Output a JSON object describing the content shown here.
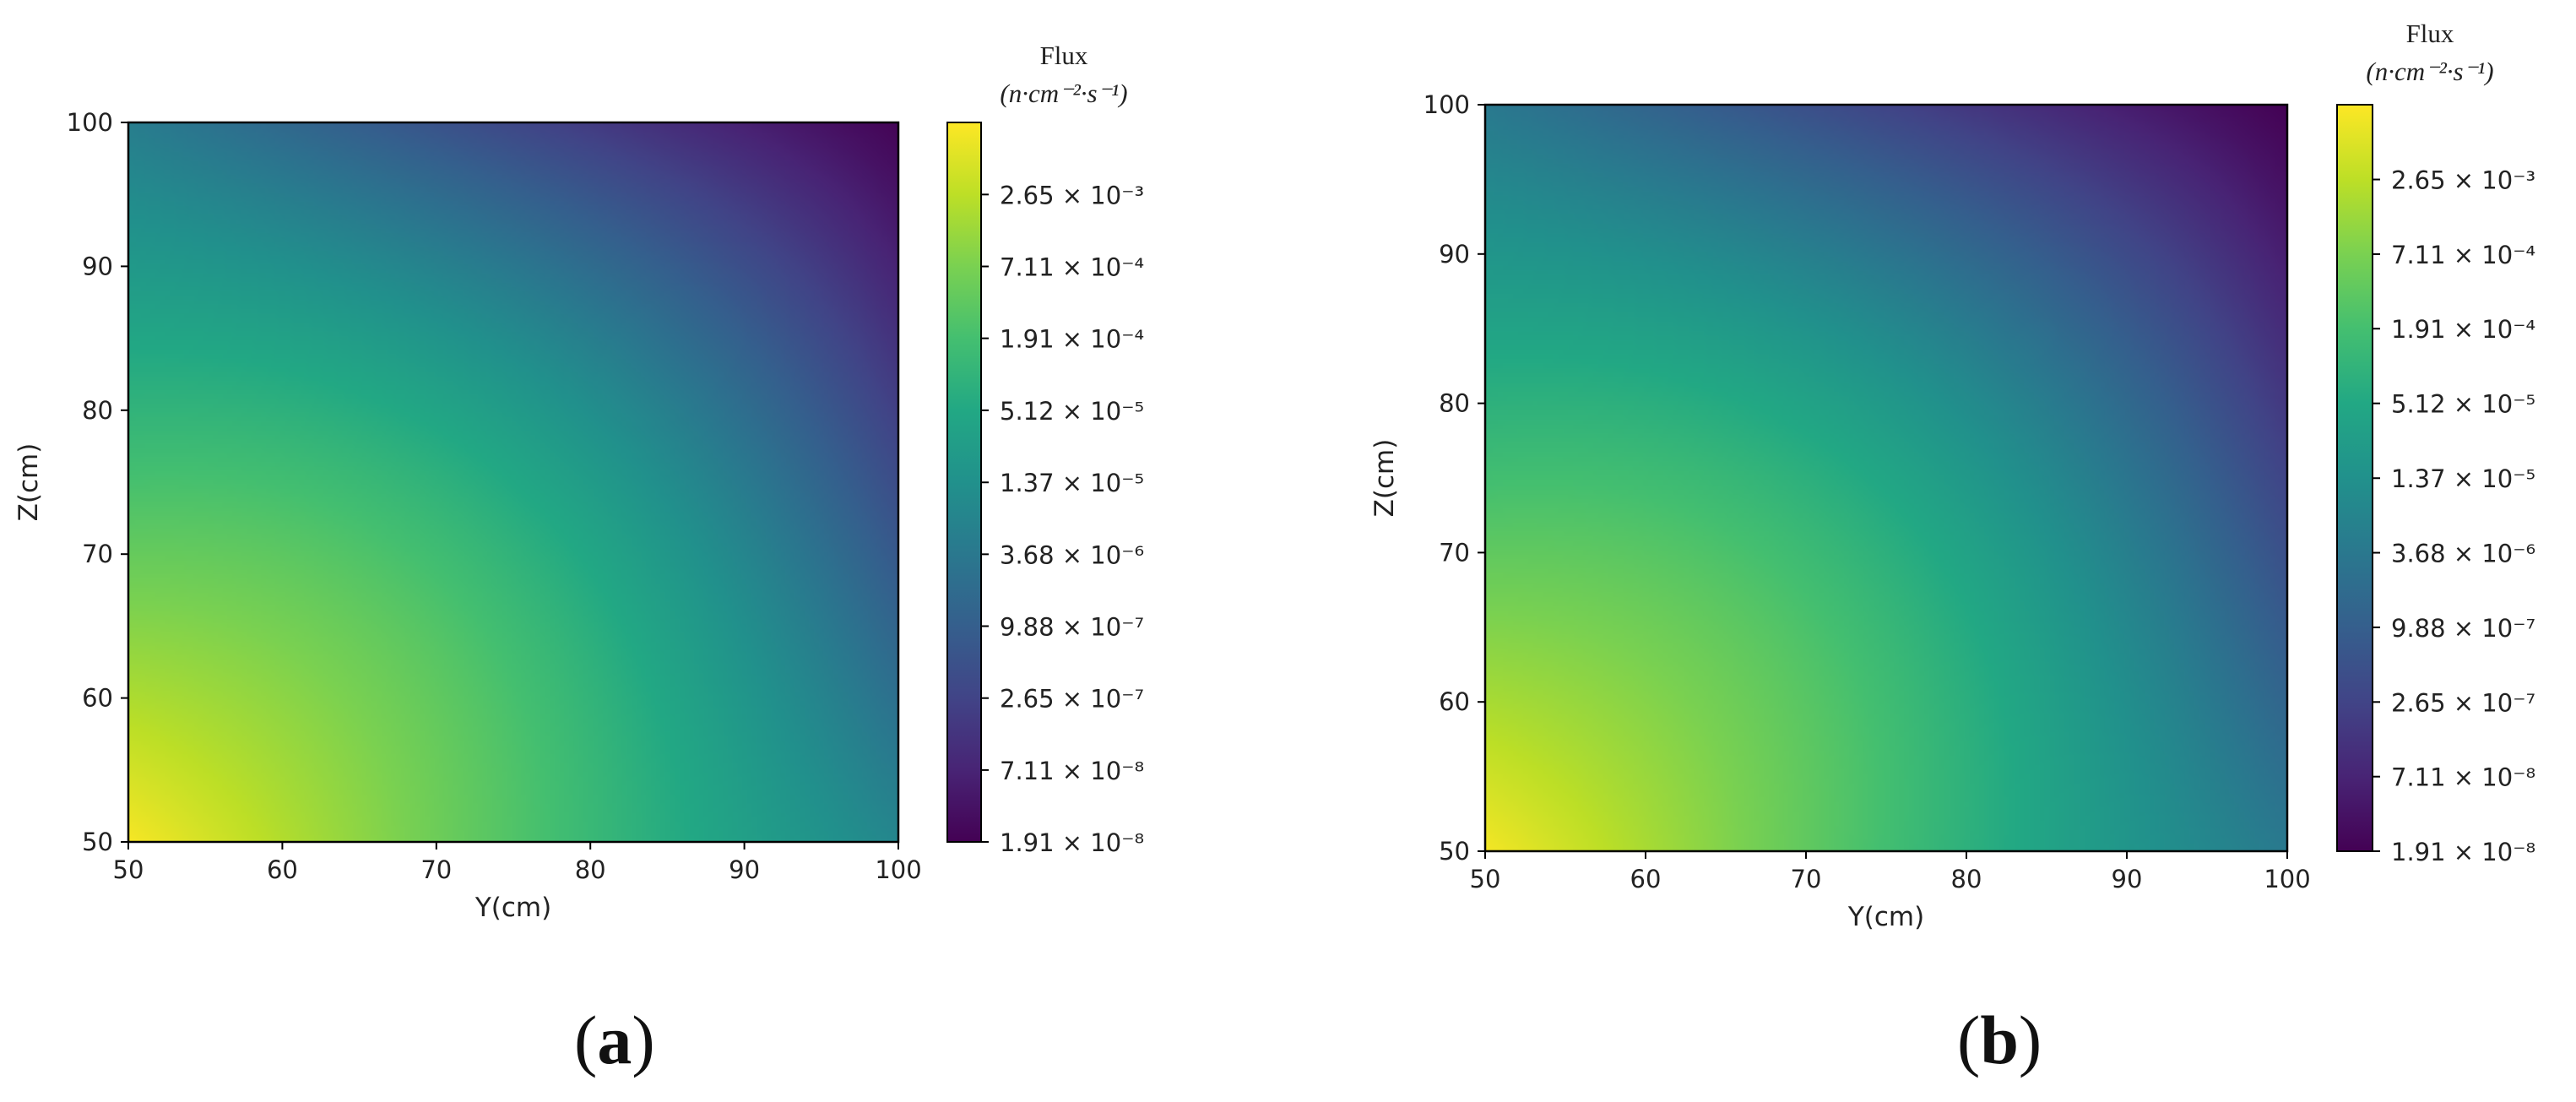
{
  "figure": {
    "panels": [
      {
        "label": "a"
      },
      {
        "label": "b"
      }
    ]
  },
  "chart_data": [
    {
      "type": "heatmap",
      "panel": "a",
      "xlabel": "Y(cm)",
      "ylabel": "Z(cm)",
      "xlim": [
        50,
        100
      ],
      "ylim": [
        50,
        100
      ],
      "xticks": [
        "50",
        "60",
        "70",
        "80",
        "90",
        "100"
      ],
      "yticks": [
        "50",
        "60",
        "70",
        "80",
        "90",
        "100"
      ],
      "colorbar": {
        "title": "Flux",
        "unit": "(n·cm⁻²·s⁻¹)",
        "scale": "log",
        "colormap": "viridis",
        "range": [
          1.91e-08,
          0.0099
        ],
        "ticks": [
          "1.91 × 10⁻⁸",
          "7.11 × 10⁻⁸",
          "2.65 × 10⁻⁷",
          "9.88 × 10⁻⁷",
          "3.68 × 10⁻⁶",
          "1.37 × 10⁻⁵",
          "5.12 × 10⁻⁵",
          "1.91 × 10⁻⁴",
          "7.11 × 10⁻⁴",
          "2.65 × 10⁻³"
        ],
        "tick_values": [
          1.91e-08,
          7.11e-08,
          2.65e-07,
          9.88e-07,
          3.68e-06,
          1.37e-05,
          5.12e-05,
          0.000191,
          0.000711,
          0.00265
        ]
      },
      "field": {
        "description_points": [
          {
            "y": 50,
            "z": 50,
            "flux": 0.0085
          },
          {
            "y": 75,
            "z": 75,
            "flux": 5.12e-05
          },
          {
            "y": 100,
            "z": 50,
            "flux": 8e-06
          },
          {
            "y": 50,
            "z": 100,
            "flux": 5e-06
          },
          {
            "y": 100,
            "z": 100,
            "flux": 2.2e-08
          }
        ]
      }
    },
    {
      "type": "heatmap",
      "panel": "b",
      "xlabel": "Y(cm)",
      "ylabel": "Z(cm)",
      "xlim": [
        50,
        100
      ],
      "ylim": [
        50,
        100
      ],
      "xticks": [
        "50",
        "60",
        "70",
        "80",
        "90",
        "100"
      ],
      "yticks": [
        "50",
        "60",
        "70",
        "80",
        "90",
        "100"
      ],
      "colorbar": {
        "title": "Flux",
        "unit": "(n·cm⁻²·s⁻¹)",
        "scale": "log",
        "colormap": "viridis",
        "range": [
          1.91e-08,
          0.0099
        ],
        "ticks": [
          "1.91 × 10⁻⁸",
          "7.11 × 10⁻⁸",
          "2.65 × 10⁻⁷",
          "9.88 × 10⁻⁷",
          "3.68 × 10⁻⁶",
          "1.37 × 10⁻⁵",
          "5.12 × 10⁻⁵",
          "1.91 × 10⁻⁴",
          "7.11 × 10⁻⁴",
          "2.65 × 10⁻³"
        ],
        "tick_values": [
          1.91e-08,
          7.11e-08,
          2.65e-07,
          9.88e-07,
          3.68e-06,
          1.37e-05,
          5.12e-05,
          0.000191,
          0.000711,
          0.00265
        ]
      },
      "field": {
        "description_points": [
          {
            "y": 50,
            "z": 50,
            "flux": 0.008
          },
          {
            "y": 75,
            "z": 75,
            "flux": 4.5e-05
          },
          {
            "y": 100,
            "z": 50,
            "flux": 4e-06
          },
          {
            "y": 50,
            "z": 100,
            "flux": 4e-06
          },
          {
            "y": 100,
            "z": 100,
            "flux": 2e-08
          }
        ]
      }
    }
  ]
}
